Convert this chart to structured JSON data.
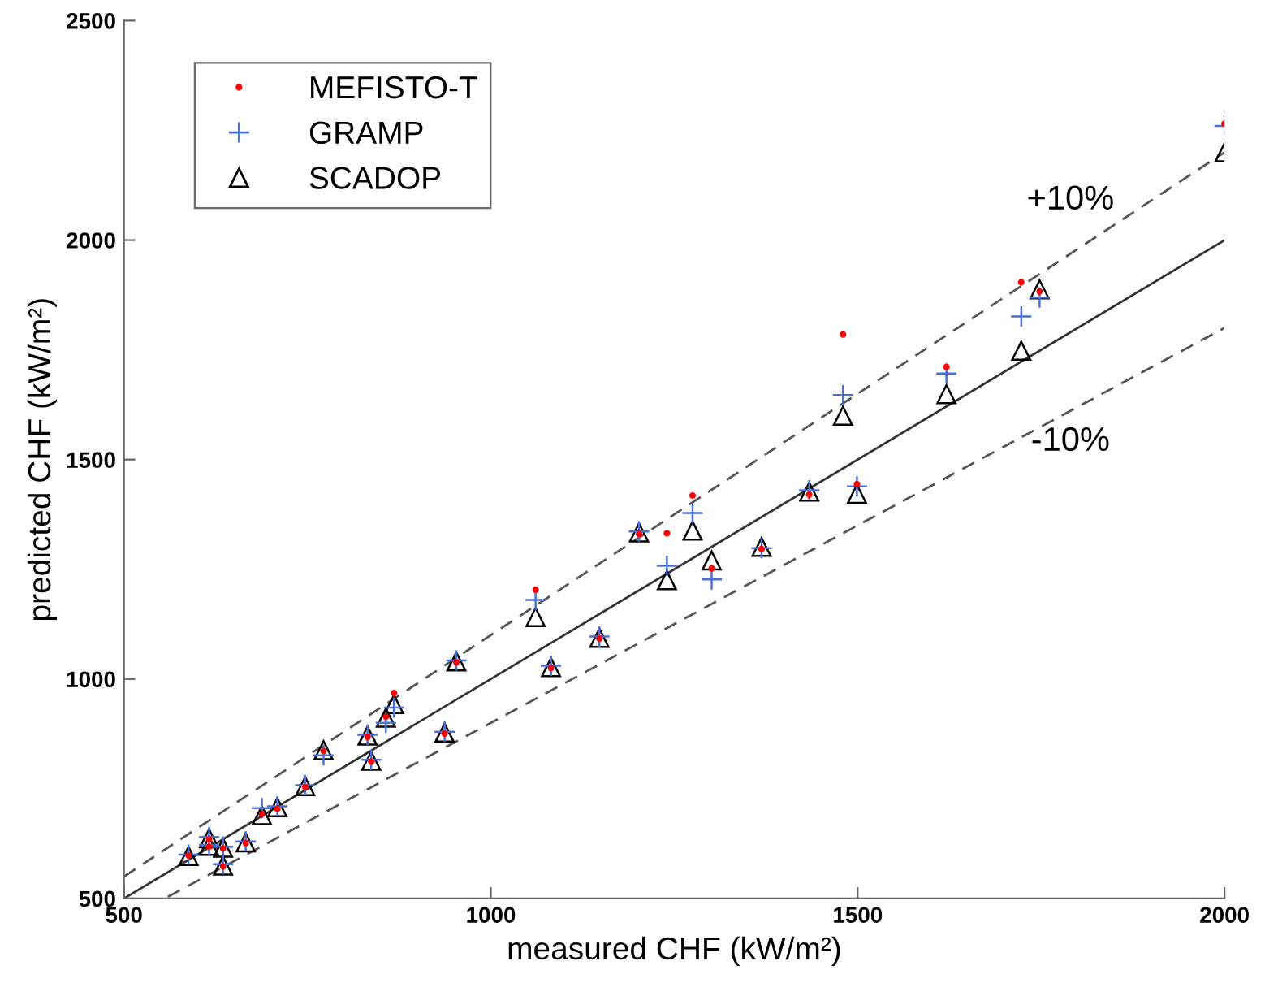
{
  "chart_data": {
    "type": "scatter",
    "xlabel": "measured CHF (kW/m²)",
    "ylabel": "predicted CHF (kW/m²)",
    "xlim": [
      500,
      2000
    ],
    "ylim": [
      500,
      2500
    ],
    "xticks": [
      500,
      1000,
      1500,
      2000
    ],
    "yticks": [
      500,
      1000,
      1500,
      2000,
      2500
    ],
    "grid": false,
    "legend": "top left",
    "annotations": [
      "+10%",
      "-10%"
    ],
    "series": [
      {
        "name": "MEFISTO-T",
        "color": "#ff0000",
        "marker": "circle",
        "x": [
          588,
          616,
          616,
          635,
          635,
          666,
          688,
          709,
          747,
          772,
          832,
          837,
          857,
          868,
          937,
          953,
          1061,
          1082,
          1148,
          1202,
          1240,
          1275,
          1301,
          1369,
          1434,
          1499,
          1480,
          1621,
          1723,
          1748,
          2000
        ],
        "values": [
          598,
          618,
          635,
          614,
          573,
          626,
          692,
          704,
          754,
          836,
          868,
          812,
          914,
          968,
          876,
          1038,
          1203,
          1025,
          1092,
          1330,
          1332,
          1418,
          1252,
          1296,
          1420,
          1444,
          1785,
          1711,
          1904,
          1883,
          2265
        ]
      },
      {
        "name": "GRAMP",
        "color": "#4a6fd6",
        "marker": "cross",
        "x": [
          588,
          616,
          616,
          635,
          635,
          666,
          688,
          709,
          747,
          772,
          832,
          837,
          857,
          868,
          937,
          953,
          1061,
          1082,
          1148,
          1202,
          1240,
          1275,
          1301,
          1369,
          1434,
          1499,
          1480,
          1621,
          1723,
          1748,
          2000
        ],
        "values": [
          600,
          622,
          640,
          618,
          578,
          630,
          706,
          710,
          758,
          826,
          873,
          816,
          900,
          935,
          880,
          1042,
          1180,
          1030,
          1097,
          1336,
          1258,
          1378,
          1227,
          1298,
          1430,
          1439,
          1647,
          1696,
          1826,
          1869,
          2260
        ]
      },
      {
        "name": "SCADOP",
        "color": "#000000",
        "marker": "triangle",
        "x": [
          588,
          616,
          616,
          635,
          635,
          666,
          688,
          709,
          747,
          772,
          832,
          837,
          857,
          868,
          937,
          953,
          1061,
          1082,
          1148,
          1202,
          1240,
          1275,
          1301,
          1369,
          1434,
          1499,
          1480,
          1621,
          1723,
          1748,
          2000
        ],
        "values": [
          597,
          620,
          637,
          616,
          575,
          628,
          690,
          708,
          756,
          838,
          871,
          814,
          912,
          943,
          878,
          1040,
          1141,
          1027,
          1094,
          1334,
          1225,
          1338,
          1270,
          1301,
          1427,
          1422,
          1600,
          1649,
          1748,
          1888,
          2200
        ]
      },
      {
        "type": "line",
        "color": "#333333",
        "line_style": "solid",
        "x": [
          500,
          2000
        ],
        "values": [
          500,
          2000
        ]
      },
      {
        "type": "line",
        "color": "#555555",
        "line_style": "dashed",
        "x": [
          500,
          2000
        ],
        "values": [
          550,
          2200
        ]
      },
      {
        "type": "line",
        "color": "#555555",
        "line_style": "dashed",
        "x": [
          560,
          2000
        ],
        "values": [
          504,
          1800
        ]
      }
    ]
  }
}
